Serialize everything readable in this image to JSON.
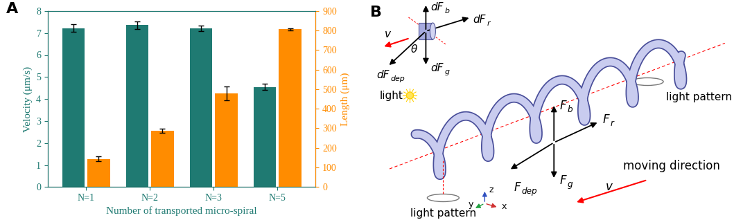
{
  "chart_data": {
    "type": "bar",
    "panel_label": "A",
    "x_label": "Number of transported micro-spiral",
    "y_label": "Velocity (μm/s)",
    "y2_label": "Length (μm)",
    "categories": [
      "N=1",
      "N=2",
      "N=3",
      "N=5"
    ],
    "series": [
      {
        "color": "#1f7a72",
        "values": [
          7.22,
          7.36,
          7.22,
          4.55
        ],
        "errors": [
          0.18,
          0.18,
          0.12,
          0.15
        ],
        "axis": "y"
      },
      {
        "color": "#ff8c00",
        "values": [
          143,
          288,
          478,
          807
        ],
        "errors": [
          12,
          10,
          35,
          5
        ],
        "axis": "y2"
      }
    ],
    "ylim": [
      0,
      8
    ],
    "yticks": [
      0,
      1,
      2,
      3,
      4,
      5,
      6,
      7,
      8
    ],
    "y2lim": [
      0,
      900
    ],
    "y2ticks": [
      0,
      100,
      200,
      300,
      400,
      500,
      600,
      700,
      800,
      900
    ],
    "grid": false
  },
  "diagram": {
    "panel_label": "B",
    "element_forces": [
      {
        "label": "dF",
        "subscript": "b"
      },
      {
        "label": "dF",
        "subscript": "r"
      },
      {
        "label": "dF",
        "subscript": "dep"
      },
      {
        "label": "dF",
        "subscript": "g"
      }
    ],
    "angle_label": "θ",
    "element_velocity_label": "v",
    "light_label": "light",
    "forces": [
      {
        "label": "F",
        "subscript": "b"
      },
      {
        "label": "F",
        "subscript": "r"
      },
      {
        "label": "F",
        "subscript": "g"
      },
      {
        "label": "F",
        "subscript": "dep"
      }
    ],
    "light_pattern_labels": [
      "light pattern",
      "light pattern"
    ],
    "moving_direction_label": "moving direction",
    "moving_velocity_label": "v",
    "axes_labels": [
      "z",
      "y",
      "x"
    ]
  }
}
